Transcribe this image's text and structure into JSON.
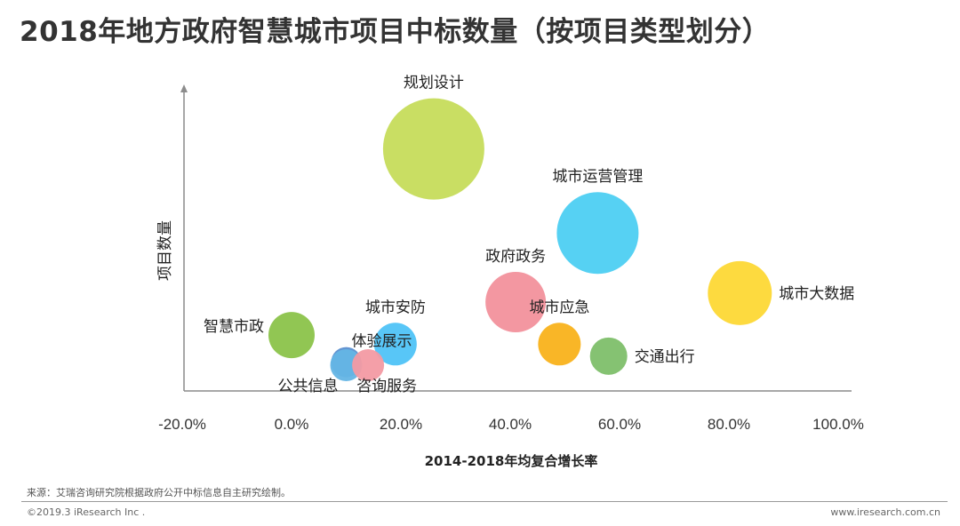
{
  "title": "2018年地方政府智慧城市项目中标数量（按项目类型划分）",
  "source": "来源：艾瑞咨询研究院根据政府公开中标信息自主研究绘制。",
  "copyright": "©2019.3 iResearch Inc .",
  "website": "www.iresearch.com.cn",
  "chart_data": {
    "type": "bubble",
    "xlabel": "2014-2018年均复合增长率",
    "ylabel": "项目数量",
    "xlim": [
      -0.2,
      1.0
    ],
    "ylim": [
      0,
      100
    ],
    "xticks": [
      "-20.0%",
      "0.0%",
      "20.0%",
      "40.0%",
      "60.0%",
      "80.0%",
      "100.0%"
    ],
    "xtick_values": [
      -0.2,
      0.0,
      0.2,
      0.4,
      0.6,
      0.8,
      1.0
    ],
    "bubbles": [
      {
        "name": "规划设计",
        "x": 0.26,
        "y": 80,
        "size": 57,
        "color": "#C6DC5B",
        "label_pos": "top"
      },
      {
        "name": "城市运营管理",
        "x": 0.56,
        "y": 52,
        "size": 46,
        "color": "#4DCFF2",
        "label_pos": "top"
      },
      {
        "name": "政府政务",
        "x": 0.41,
        "y": 29,
        "size": 34,
        "color": "#F2919C",
        "label_pos": "top"
      },
      {
        "name": "城市大数据",
        "x": 0.82,
        "y": 32,
        "size": 36,
        "color": "#FDD835",
        "label_pos": "right"
      },
      {
        "name": "智慧市政",
        "x": 0.0,
        "y": 18,
        "size": 26,
        "color": "#8BC34A",
        "label_pos": "left"
      },
      {
        "name": "城市安防",
        "x": 0.19,
        "y": 15,
        "size": 24,
        "color": "#4FC3F7",
        "label_pos": "top"
      },
      {
        "name": "城市应急",
        "x": 0.49,
        "y": 15,
        "size": 24,
        "color": "#F9B21B",
        "label_pos": "top"
      },
      {
        "name": "交通出行",
        "x": 0.58,
        "y": 11,
        "size": 21,
        "color": "#7EBF6A",
        "label_pos": "right"
      },
      {
        "name": "体验展示",
        "x": 0.1,
        "y": 9,
        "size": 17,
        "color": "#5B8FD0",
        "label_pos": "upper-right"
      },
      {
        "name": "公共信息",
        "x": 0.1,
        "y": 8,
        "size": 18,
        "color": "#64B5E5",
        "label_pos": "lower-left"
      },
      {
        "name": "咨询服务",
        "x": 0.14,
        "y": 8,
        "size": 18,
        "color": "#F39AA3",
        "label_pos": "lower-right"
      }
    ]
  }
}
